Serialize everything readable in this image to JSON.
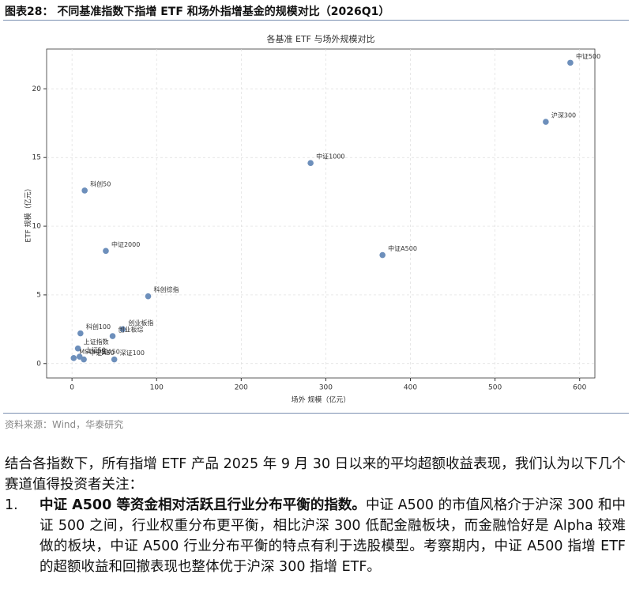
{
  "header": {
    "title": "图表28： 不同基准指数下指增 ETF 和场外指增基金的规模对比（2026Q1）"
  },
  "chart_data": {
    "type": "scatter",
    "title": "各基准 ETF 与场外规模对比",
    "xlabel": "场外 规模（亿元）",
    "ylabel": "ETF 规模（亿元）",
    "labels": [
      "中证500",
      "沪深300",
      "中证1000",
      "科创50",
      "中证2000",
      "中证A500",
      "科创综指",
      "创业板指",
      "创业板综",
      "科创100",
      "上证指数",
      "上证50",
      "中证A50",
      "MSCI中国A50",
      "深证100"
    ],
    "x": [
      589,
      560,
      282,
      15,
      40,
      367,
      90,
      60,
      48,
      10,
      7,
      9,
      14,
      2,
      50
    ],
    "values": [
      21.9,
      17.6,
      14.6,
      12.6,
      8.2,
      7.9,
      4.9,
      2.5,
      2.0,
      2.2,
      1.1,
      0.5,
      0.3,
      0.4,
      0.3
    ],
    "color": "#6d8fbb",
    "xlim": [
      -30,
      618
    ],
    "ylim": [
      -1.05,
      22.9
    ],
    "xticks": [
      0,
      100,
      200,
      300,
      400,
      500,
      600
    ],
    "yticks": [
      0,
      5,
      10,
      15,
      20
    ],
    "grid": true
  },
  "source": "资料来源：Wind，华泰研究",
  "body": {
    "intro": "结合各指数下，所有指增 ETF 产品 2025 年 9 月 30 日以来的平均超额收益表现，我们认为以下几个赛道值得投资者关注：",
    "items": [
      {
        "number": "1.",
        "bold": "中证 A500 等资金相对活跃且行业分布平衡的指数。",
        "text": "中证 A500 的市值风格介于沪深 300 和中证 500 之间，行业权重分布更平衡，相比沪深 300 低配金融板块，而金融恰好是 Alpha 较难做的板块，中证 A500 行业分布平衡的特点有利于选股模型。考察期内，中证 A500 指增 ETF 的超额收益和回撤表现也整体优于沪深 300 指增 ETF。"
      }
    ]
  }
}
